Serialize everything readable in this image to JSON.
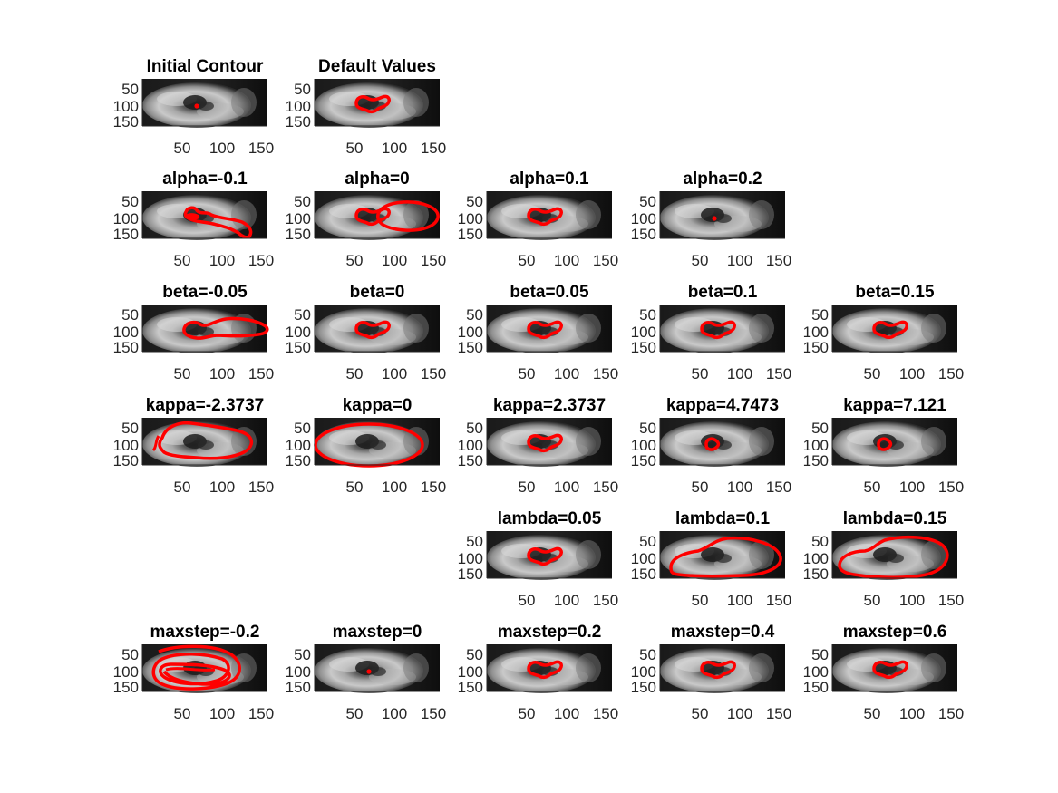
{
  "figure": {
    "background": "#ffffff",
    "contour_color": "#ff0000",
    "ytick_labels": [
      "50",
      "100",
      "150"
    ],
    "xtick_labels": [
      "50",
      "100",
      "150"
    ],
    "panels": [
      {
        "id": "initial-contour",
        "title": "Initial Contour",
        "contour": "dot"
      },
      {
        "id": "default-values",
        "title": "Default Values",
        "contour": "blob"
      },
      {
        "id": "alpha-n0.1",
        "title": "alpha=-0.1",
        "contour": "alpha-neg"
      },
      {
        "id": "alpha-0",
        "title": "alpha=0",
        "contour": "alpha-zero"
      },
      {
        "id": "alpha-0.1",
        "title": "alpha=0.1",
        "contour": "blob"
      },
      {
        "id": "alpha-0.2",
        "title": "alpha=0.2",
        "contour": "dot"
      },
      {
        "id": "beta-n0.05",
        "title": "beta=-0.05",
        "contour": "beta-neg"
      },
      {
        "id": "beta-0",
        "title": "beta=0",
        "contour": "blob"
      },
      {
        "id": "beta-0.05",
        "title": "beta=0.05",
        "contour": "blob"
      },
      {
        "id": "beta-0.1",
        "title": "beta=0.1",
        "contour": "blob"
      },
      {
        "id": "beta-0.15",
        "title": "beta=0.15",
        "contour": "blob"
      },
      {
        "id": "kappa-n2.3737",
        "title": "kappa=-2.3737",
        "contour": "kappa-neg"
      },
      {
        "id": "kappa-0",
        "title": "kappa=0",
        "contour": "ellipse-large"
      },
      {
        "id": "kappa-2.3737",
        "title": "kappa=2.3737",
        "contour": "blob"
      },
      {
        "id": "kappa-4.7473",
        "title": "kappa=4.7473",
        "contour": "small-blob"
      },
      {
        "id": "kappa-7.121",
        "title": "kappa=7.121",
        "contour": "small-blob"
      },
      {
        "id": "lambda-0.05",
        "title": "lambda=0.05",
        "contour": "blob"
      },
      {
        "id": "lambda-0.1",
        "title": "lambda=0.1",
        "contour": "lambda-big"
      },
      {
        "id": "lambda-0.15",
        "title": "lambda=0.15",
        "contour": "lambda-big2"
      },
      {
        "id": "maxstep-n0.2",
        "title": "maxstep=-0.2",
        "contour": "scribble"
      },
      {
        "id": "maxstep-0",
        "title": "maxstep=0",
        "contour": "dot"
      },
      {
        "id": "maxstep-0.2",
        "title": "maxstep=0.2",
        "contour": "blob"
      },
      {
        "id": "maxstep-0.4",
        "title": "maxstep=0.4",
        "contour": "blob"
      },
      {
        "id": "maxstep-0.6",
        "title": "maxstep=0.6",
        "contour": "blob"
      }
    ]
  }
}
